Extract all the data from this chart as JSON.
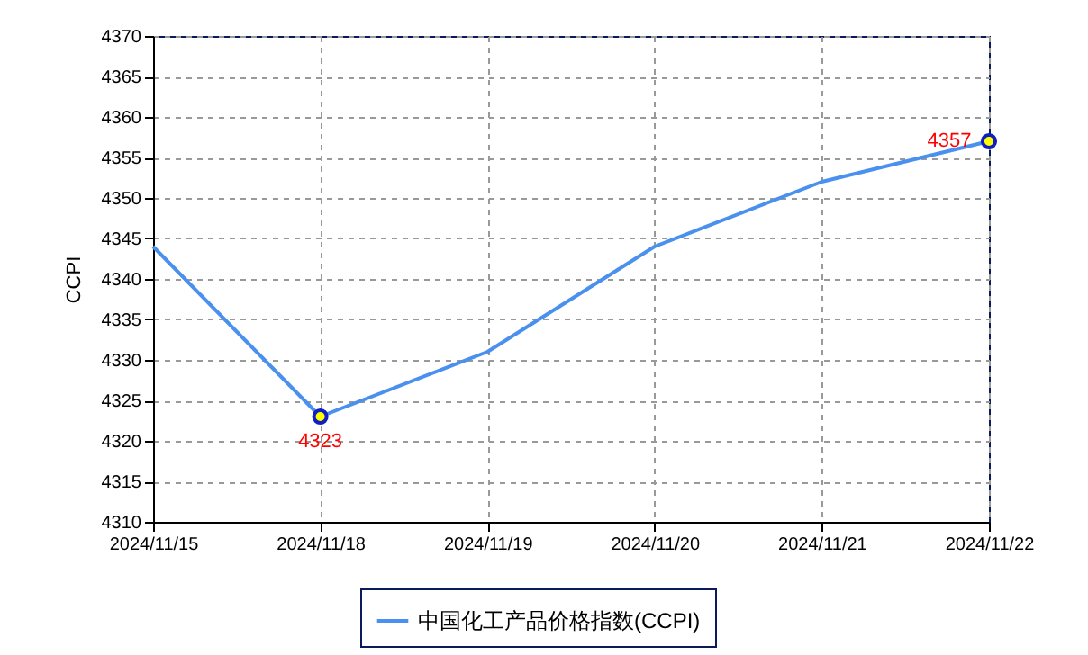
{
  "chart_data": {
    "type": "line",
    "ylabel": "CCPI",
    "categories": [
      "2024/11/15",
      "2024/11/18",
      "2024/11/19",
      "2024/11/20",
      "2024/11/21",
      "2024/11/22"
    ],
    "series": [
      {
        "name": "中国化工产品价格指数(CCPI)",
        "color": "#4a90ee",
        "values": [
          4344,
          4323,
          4331,
          4344,
          4352,
          4357
        ],
        "value_labels": [
          null,
          "4323",
          null,
          null,
          null,
          "4357"
        ]
      }
    ],
    "ylim": [
      4310,
      4370
    ],
    "yticks": [
      4310,
      4315,
      4320,
      4325,
      4330,
      4335,
      4340,
      4345,
      4350,
      4355,
      4360,
      4365,
      4370
    ],
    "grid": true,
    "legend": "bottom",
    "line_style": "solid",
    "marker": "none"
  }
}
